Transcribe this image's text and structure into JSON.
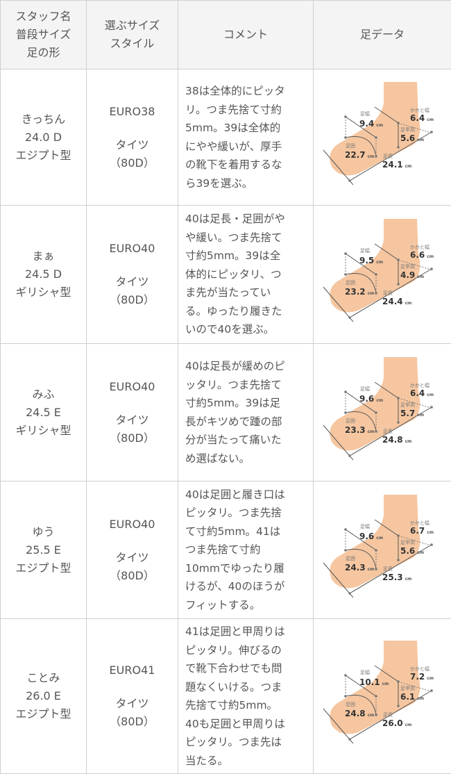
{
  "header": {
    "col1": [
      "スタッフ名",
      "普段サイズ",
      "足の形"
    ],
    "col2": [
      "選ぶサイズ",
      "スタイル"
    ],
    "col3": "コメント",
    "col4": "足データ"
  },
  "foot_labels": {
    "width": "足幅",
    "heel": "かかと幅",
    "instep": "足甲高",
    "girth": "足囲",
    "length": "足長",
    "unit": "cm"
  },
  "colors": {
    "skin": "#f5c6a0",
    "border": "#cfcfcf",
    "header_bg": "#f4f4f4",
    "text": "#555555"
  },
  "rows": [
    {
      "name": "きっちん",
      "size": "24.0 D",
      "shape": "エジプト型",
      "euro": "EURO38",
      "style": "タイツ",
      "den": "（80D）",
      "comment": [
        "38は全体的にピッタ",
        "リ。つま先捨て寸約",
        "5mm。39は全体的",
        "にやや緩いが、厚手",
        "の靴下を着用するな",
        "ら39を選ぶ。"
      ],
      "foot": {
        "width": "9.4",
        "heel": "6.4",
        "instep": "5.6",
        "girth": "22.7",
        "length": "24.1"
      }
    },
    {
      "name": "まぁ",
      "size": "24.5 D",
      "shape": "ギリシャ型",
      "euro": "EURO40",
      "style": "タイツ",
      "den": "（80D）",
      "comment": [
        "40は足長・足囲がや",
        "や緩い。つま先捨て",
        "寸約5mm。39は全",
        "体的にピッタリ、つ",
        "ま先が当たってい",
        "る。ゆったり履きた",
        "いので40を選ぶ。"
      ],
      "foot": {
        "width": "9.5",
        "heel": "6.6",
        "instep": "4.9",
        "girth": "23.2",
        "length": "24.4"
      }
    },
    {
      "name": "みふ",
      "size": "24.5 E",
      "shape": "ギリシャ型",
      "euro": "EURO40",
      "style": "タイツ",
      "den": "（80D）",
      "comment": [
        "40は足長が緩めのピ",
        "ッタリ。つま先捨て",
        "寸約5mm。39は足",
        "長がキツめで踵の部",
        "分が当たって痛いた",
        "め選ばない。"
      ],
      "foot": {
        "width": "9.6",
        "heel": "6.4",
        "instep": "5.7",
        "girth": "23.3",
        "length": "24.8"
      }
    },
    {
      "name": "ゆう",
      "size": "25.5 E",
      "shape": "エジプト型",
      "euro": "EURO40",
      "style": "タイツ",
      "den": "（80D）",
      "comment": [
        "40は足囲と履き口は",
        "ピッタリ。つま先捨",
        "て寸約5mm。41は",
        "つま先捨て寸約",
        "10mmでゆったり履",
        "けるが、40のほうが",
        "フィットする。"
      ],
      "foot": {
        "width": "9.6",
        "heel": "6.7",
        "instep": "5.6",
        "girth": "24.3",
        "length": "25.3"
      }
    },
    {
      "name": "ことみ",
      "size": "26.0 E",
      "shape": "エジプト型",
      "euro": "EURO41",
      "style": "タイツ",
      "den": "（80D）",
      "comment": [
        "41は足囲と甲周りは",
        "ピッタリ。伸びるの",
        "で靴下合わせでも問",
        "題なくいける。つま",
        "先捨て寸約5mm。",
        "40も足囲と甲周りは",
        "ピッタリ。つま先は",
        "当たる。"
      ],
      "foot": {
        "width": "10.1",
        "heel": "7.2",
        "instep": "6.1",
        "girth": "24.8",
        "length": "26.0"
      }
    }
  ]
}
